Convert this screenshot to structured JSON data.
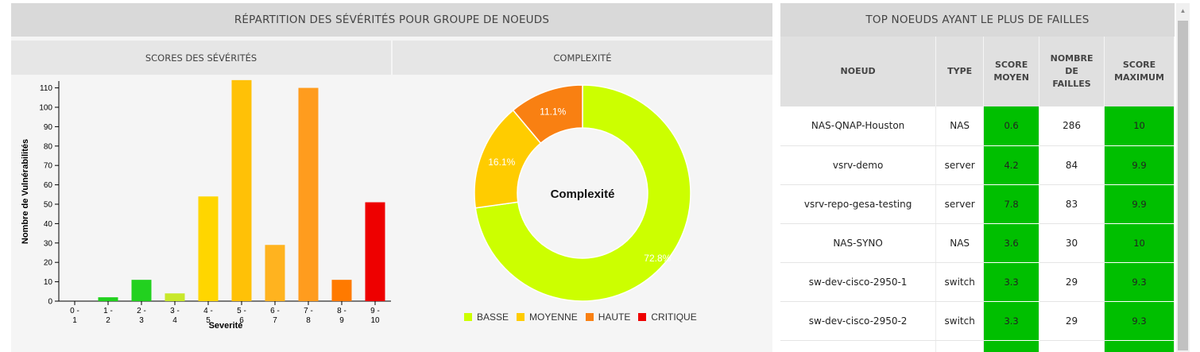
{
  "left_panel": {
    "title": "RÉPARTITION DES SÉVÉRITÉS POUR GROUPE DE NOEUDS",
    "sub_left": "SCORES DES SÉVÉRITÉS",
    "sub_right": "COMPLEXITÉ"
  },
  "chart_data": [
    {
      "type": "bar",
      "title": "",
      "xlabel": "Severité",
      "ylabel": "Nombre de Vulnérabilités",
      "ylim": [
        0,
        115
      ],
      "yticks": [
        0,
        10,
        20,
        30,
        40,
        50,
        60,
        70,
        80,
        90,
        100,
        110
      ],
      "categories": [
        [
          "0 -",
          "1"
        ],
        [
          "1 -",
          "2"
        ],
        [
          "2 -",
          "3"
        ],
        [
          "3 -",
          "4"
        ],
        [
          "4 -",
          "5"
        ],
        [
          "5 -",
          "6"
        ],
        [
          "6 -",
          "7"
        ],
        [
          "7 -",
          "8"
        ],
        [
          "8 -",
          "9"
        ],
        [
          "9 -",
          "10"
        ]
      ],
      "values": [
        0,
        2,
        11,
        4,
        54,
        114,
        29,
        110,
        11,
        51
      ],
      "colors": [
        "#cccccc",
        "#22d11f",
        "#22d11f",
        "#c8e82a",
        "#ffd600",
        "#ffc107",
        "#ffb31f",
        "#ff9c1e",
        "#ff7a00",
        "#ee0000"
      ],
      "grid": false
    },
    {
      "type": "pie",
      "variant": "donut",
      "center_label": "Complexité",
      "labels": [
        "BASSE",
        "MOYENNE",
        "HAUTE",
        "CRITIQUE"
      ],
      "values": [
        72.8,
        16.1,
        11.1,
        0
      ],
      "value_labels": [
        "72.8%",
        "16.1%",
        "11.1%",
        ""
      ],
      "colors": [
        "#ccff00",
        "#ffcc00",
        "#f98012",
        "#ee0000"
      ],
      "legend": "bottom"
    }
  ],
  "right_panel": {
    "title": "TOP NOEUDS AYANT LE PLUS DE FAILLES",
    "columns": [
      [
        "NOEUD"
      ],
      [
        "TYPE"
      ],
      [
        "SCORE",
        "MOYEN"
      ],
      [
        "NOMBRE",
        "DE",
        "FAILLES"
      ],
      [
        "SCORE",
        "MAXIMUM"
      ]
    ],
    "rows": [
      [
        "NAS-QNAP-Houston",
        "NAS",
        "0.6",
        "286",
        "10"
      ],
      [
        "vsrv-demo",
        "server",
        "4.2",
        "84",
        "9.9"
      ],
      [
        "vsrv-repo-gesa-testing",
        "server",
        "7.8",
        "83",
        "9.9"
      ],
      [
        "NAS-SYNO",
        "NAS",
        "3.6",
        "30",
        "10"
      ],
      [
        "sw-dev-cisco-2950-1",
        "switch",
        "3.3",
        "29",
        "9.3"
      ],
      [
        "sw-dev-cisco-2950-2",
        "switch",
        "3.3",
        "29",
        "9.3"
      ]
    ],
    "score_color": "#00bf00"
  },
  "icons": {
    "scroll_up": "triangle-up-icon"
  }
}
